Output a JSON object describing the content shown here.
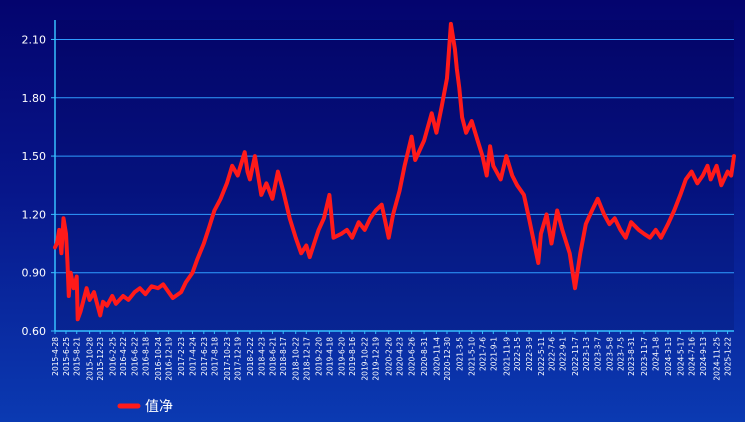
{
  "chart_data": {
    "type": "line",
    "title": "",
    "xlabel": "",
    "ylabel": "",
    "ylim": [
      0.6,
      2.2
    ],
    "grid": true,
    "legend_position": "bottom-left",
    "y_ticks": [
      "2.10",
      "1.80",
      "1.50",
      "1.20",
      "0.90",
      "0.60"
    ],
    "y_tick_values": [
      2.1,
      1.8,
      1.5,
      1.2,
      0.9,
      0.6
    ],
    "x_tick_labels": [
      "2015-4-28",
      "2015-6-25",
      "2015-8-21",
      "2015-10-28",
      "2015-12-23",
      "2016-2-25",
      "2016-4-22",
      "2016-6-22",
      "2016-8-18",
      "2016-10-24",
      "2016-12-19",
      "2017-2-23",
      "2017-4-24",
      "2017-6-23",
      "2017-8-18",
      "2017-10-23",
      "2017-12-19",
      "2018-2-22",
      "2018-4-23",
      "2018-6-21",
      "2018-8-17",
      "2018-10-22",
      "2018-12-17",
      "2019-2-20",
      "2019-4-18",
      "2019-6-20",
      "2019-8-16",
      "2019-10-22",
      "2019-12-19",
      "2020-2-26",
      "2020-4-23",
      "2020-6-26",
      "2020-8-31",
      "2020-11-4",
      "2020-12-30",
      "2021-3-5",
      "2021-5-10",
      "2021-7-6",
      "2021-9-1",
      "2021-11-9",
      "2022-1-5",
      "2022-3-9",
      "2022-5-11",
      "2022-7-6",
      "2022-9-1",
      "2022-11-7",
      "2023-1-3",
      "2023-3-7",
      "2023-5-8",
      "2023-7-5",
      "2023-8-31",
      "2023-11-7",
      "2024-1-8",
      "2024-3-13",
      "2024-5-17",
      "2024-7-16",
      "2024-9-13",
      "2024-11-25",
      "2025-1-22"
    ],
    "series": [
      {
        "name": "值净",
        "color": "#ff1a1a",
        "x": [
          "2015-4-28",
          "2015-5-8",
          "2015-5-20",
          "2015-6-1",
          "2015-6-12",
          "2015-6-25",
          "2015-7-3",
          "2015-7-10",
          "2015-7-20",
          "2015-8-5",
          "2015-8-21",
          "2015-8-26",
          "2015-9-10",
          "2015-10-12",
          "2015-10-28",
          "2015-11-20",
          "2015-12-23",
          "2016-1-7",
          "2016-1-28",
          "2016-2-25",
          "2016-3-15",
          "2016-4-22",
          "2016-5-20",
          "2016-6-22",
          "2016-7-20",
          "2016-8-18",
          "2016-9-20",
          "2016-10-24",
          "2016-11-20",
          "2016-12-19",
          "2017-1-10",
          "2017-2-23",
          "2017-3-20",
          "2017-4-24",
          "2017-5-20",
          "2017-6-23",
          "2017-7-20",
          "2017-8-18",
          "2017-9-20",
          "2017-10-23",
          "2017-11-20",
          "2017-12-19",
          "2018-1-25",
          "2018-2-9",
          "2018-2-22",
          "2018-3-20",
          "2018-4-23",
          "2018-5-20",
          "2018-6-21",
          "2018-7-20",
          "2018-8-17",
          "2018-9-20",
          "2018-10-22",
          "2018-11-20",
          "2018-12-17",
          "2019-1-4",
          "2019-2-20",
          "2019-3-20",
          "2019-4-18",
          "2019-5-10",
          "2019-6-20",
          "2019-7-20",
          "2019-8-16",
          "2019-9-20",
          "2019-10-22",
          "2019-11-20",
          "2019-12-19",
          "2020-1-20",
          "2020-2-26",
          "2020-3-20",
          "2020-4-23",
          "2020-5-20",
          "2020-6-26",
          "2020-7-15",
          "2020-8-31",
          "2020-10-10",
          "2020-11-4",
          "2020-12-1",
          "2020-12-30",
          "2021-1-20",
          "2021-2-10",
          "2021-2-20",
          "2021-3-5",
          "2021-3-20",
          "2021-4-10",
          "2021-5-10",
          "2021-6-10",
          "2021-7-6",
          "2021-7-28",
          "2021-8-15",
          "2021-9-1",
          "2021-10-10",
          "2021-11-9",
          "2021-12-10",
          "2022-1-5",
          "2022-2-10",
          "2022-3-9",
          "2022-4-27",
          "2022-5-11",
          "2022-6-10",
          "2022-7-6",
          "2022-8-5",
          "2022-9-1",
          "2022-10-10",
          "2022-11-7",
          "2022-12-5",
          "2023-1-3",
          "2023-2-5",
          "2023-3-7",
          "2023-4-10",
          "2023-5-8",
          "2023-6-5",
          "2023-7-5",
          "2023-8-2",
          "2023-8-31",
          "2023-10-10",
          "2023-11-7",
          "2023-12-8",
          "2024-1-8",
          "2024-2-5",
          "2024-3-13",
          "2024-4-15",
          "2024-5-17",
          "2024-6-15",
          "2024-7-16",
          "2024-8-15",
          "2024-9-13",
          "2024-10-8",
          "2024-10-25",
          "2024-11-25",
          "2024-12-20",
          "2025-1-22",
          "2025-2-10",
          "2025-2-25"
        ],
        "values": [
          1.03,
          1.05,
          1.12,
          1.0,
          1.18,
          1.1,
          0.95,
          0.78,
          0.9,
          0.82,
          0.88,
          0.66,
          0.7,
          0.82,
          0.76,
          0.8,
          0.68,
          0.75,
          0.73,
          0.78,
          0.74,
          0.78,
          0.76,
          0.8,
          0.82,
          0.79,
          0.83,
          0.82,
          0.84,
          0.8,
          0.77,
          0.8,
          0.85,
          0.9,
          0.97,
          1.05,
          1.13,
          1.22,
          1.28,
          1.36,
          1.45,
          1.4,
          1.52,
          1.42,
          1.38,
          1.5,
          1.3,
          1.36,
          1.28,
          1.42,
          1.32,
          1.18,
          1.08,
          1.0,
          1.04,
          0.98,
          1.12,
          1.18,
          1.3,
          1.08,
          1.1,
          1.12,
          1.08,
          1.16,
          1.12,
          1.18,
          1.22,
          1.25,
          1.08,
          1.2,
          1.32,
          1.45,
          1.6,
          1.48,
          1.58,
          1.72,
          1.62,
          1.75,
          1.9,
          2.18,
          2.05,
          1.95,
          1.85,
          1.7,
          1.62,
          1.68,
          1.58,
          1.5,
          1.4,
          1.55,
          1.45,
          1.38,
          1.5,
          1.4,
          1.35,
          1.3,
          1.18,
          0.95,
          1.1,
          1.2,
          1.05,
          1.22,
          1.12,
          1.0,
          0.82,
          1.0,
          1.15,
          1.22,
          1.28,
          1.2,
          1.15,
          1.18,
          1.12,
          1.08,
          1.16,
          1.12,
          1.1,
          1.08,
          1.12,
          1.08,
          1.15,
          1.22,
          1.3,
          1.38,
          1.42,
          1.36,
          1.4,
          1.45,
          1.38,
          1.45,
          1.35,
          1.42,
          1.4,
          1.5
        ]
      }
    ]
  }
}
